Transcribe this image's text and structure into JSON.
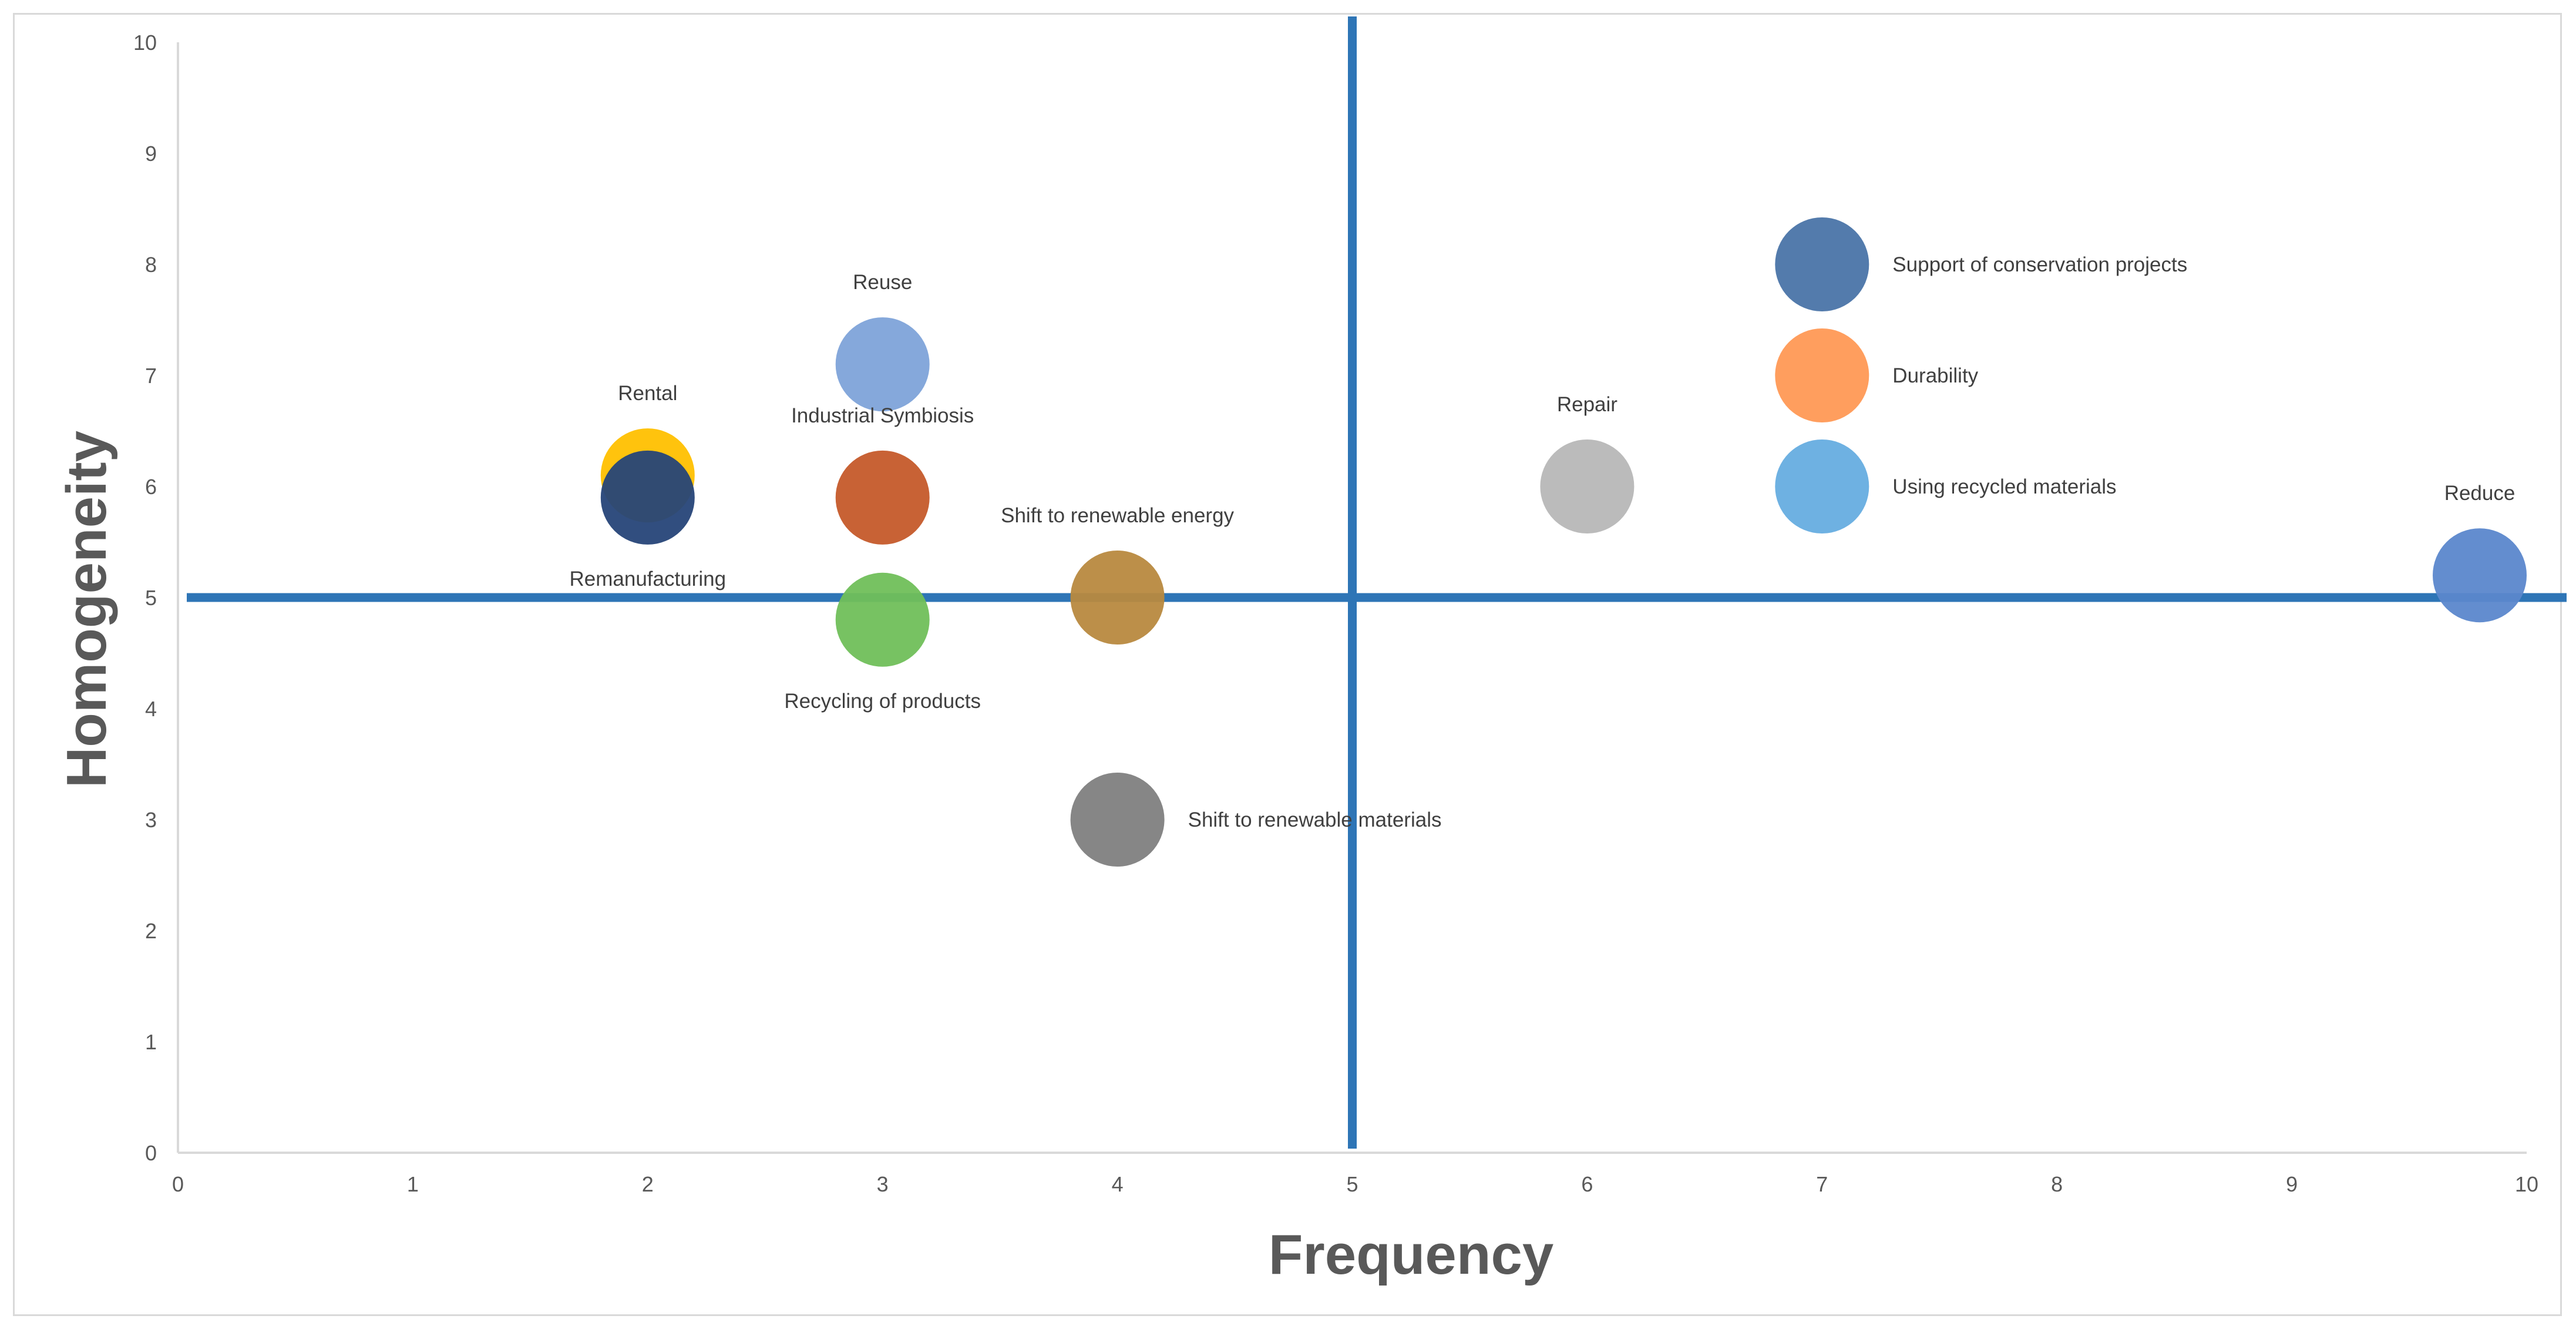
{
  "chart_data": {
    "type": "bubble",
    "title": "",
    "xlabel": "Frequency",
    "ylabel": "Homogeneity",
    "xlim": [
      0,
      10
    ],
    "ylim": [
      0,
      10
    ],
    "xticks": [
      "0",
      "1",
      "2",
      "3",
      "4",
      "5",
      "6",
      "7",
      "8",
      "9",
      "10"
    ],
    "yticks": [
      "0",
      "1",
      "2",
      "3",
      "4",
      "5",
      "6",
      "7",
      "8",
      "9",
      "10"
    ],
    "grid": false,
    "reference_lines": {
      "x": 5,
      "y": 5,
      "color": "#2e75b6"
    },
    "series": [
      {
        "name": "Rental",
        "x": 2,
        "y": 6.1,
        "color": "#ffc000",
        "label_pos": "above"
      },
      {
        "name": "Remanufacturing",
        "x": 2,
        "y": 5.9,
        "color": "#264478",
        "label_pos": "below"
      },
      {
        "name": "Reuse",
        "x": 3,
        "y": 7.1,
        "color": "#7ea3d9",
        "label_pos": "above"
      },
      {
        "name": "Industrial Symbiosis",
        "x": 3,
        "y": 5.9,
        "color": "#c55a2a",
        "label_pos": "above"
      },
      {
        "name": "Recycling of products",
        "x": 3,
        "y": 4.8,
        "color": "#70bf5a",
        "label_pos": "below"
      },
      {
        "name": "Shift to renewable energy",
        "x": 4,
        "y": 5,
        "color": "#b8893f",
        "label_pos": "above"
      },
      {
        "name": "Shift to renewable materials",
        "x": 4,
        "y": 3,
        "color": "#7f7f7f",
        "label_pos": "right"
      },
      {
        "name": "Repair",
        "x": 6,
        "y": 6,
        "color": "#b7b7b7",
        "label_pos": "above"
      },
      {
        "name": "Support of conservation projects",
        "x": 7,
        "y": 8,
        "color": "#4a74a8",
        "label_pos": "right"
      },
      {
        "name": "Durability",
        "x": 7,
        "y": 7,
        "color": "#ff9955",
        "label_pos": "right"
      },
      {
        "name": "Using recycled materials",
        "x": 7,
        "y": 6,
        "color": "#66ade0",
        "label_pos": "right"
      },
      {
        "name": "Reduce",
        "x": 9.8,
        "y": 5.2,
        "color": "#5b87cc",
        "label_pos": "above"
      }
    ]
  }
}
